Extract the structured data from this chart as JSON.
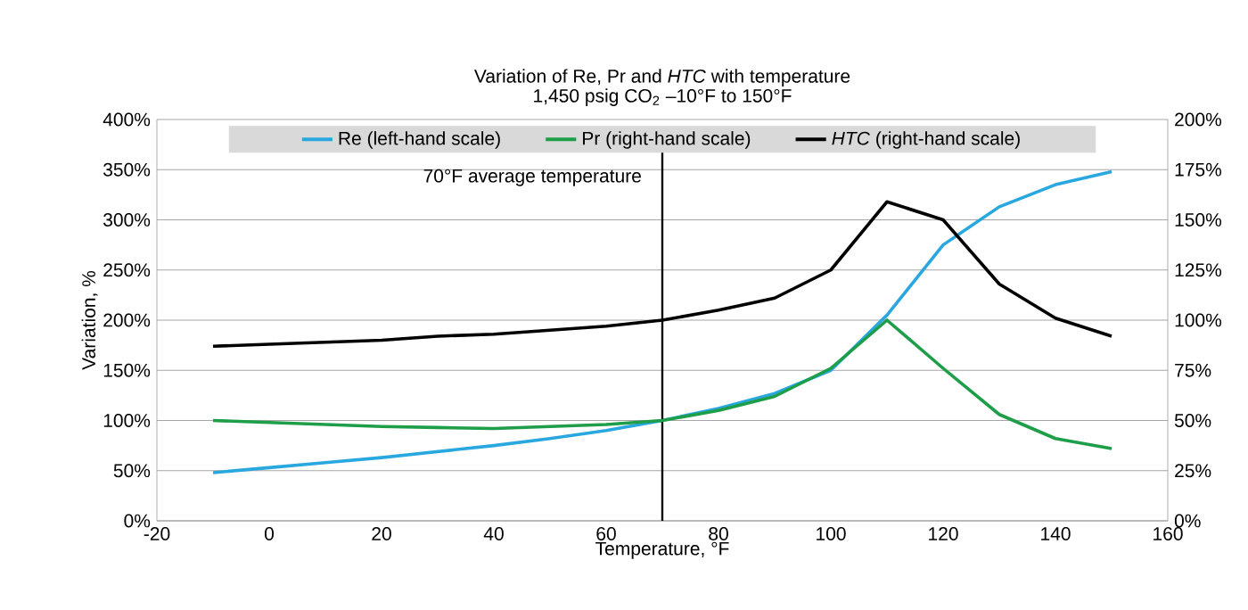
{
  "chart_data": {
    "type": "line",
    "title": "Variation of Re, Pr and *HTC* with temperature",
    "subtitle": "1,450 psig CO$_{2}$  –10°F to 150°F",
    "xlabel": "Temperature, °F",
    "ylabel": "Variation, %",
    "x": [
      -10,
      0,
      10,
      20,
      30,
      40,
      50,
      60,
      70,
      80,
      90,
      100,
      110,
      120,
      130,
      140,
      150
    ],
    "series": [
      {
        "name": "Re (left-hand scale)",
        "color": "#29a8e0",
        "values": [
          48,
          53,
          58,
          63,
          69,
          75,
          82,
          90,
          100,
          112,
          127,
          150,
          205,
          275,
          313,
          335,
          348
        ]
      },
      {
        "name": "Pr (right-hand scale)",
        "color": "#1e9e48",
        "axis": "y2",
        "values": [
          50,
          49,
          48,
          47,
          46.5,
          46,
          47,
          48,
          50,
          55,
          62,
          76,
          100,
          76,
          53,
          41,
          36
        ]
      },
      {
        "name": "*HTC* (right-hand scale)",
        "color": "#000000",
        "axis": "y2",
        "values": [
          87,
          88,
          89,
          90,
          92,
          93,
          95,
          97,
          100,
          105,
          111,
          125,
          159,
          150,
          118,
          101,
          92
        ]
      }
    ],
    "xlim": [
      -20,
      160
    ],
    "xticks": [
      -20,
      0,
      20,
      40,
      60,
      80,
      100,
      120,
      140,
      160
    ],
    "ylim": [
      0,
      400
    ],
    "yticks": [
      {
        "value": 0,
        "label": "0%"
      },
      {
        "value": 50,
        "label": "50%"
      },
      {
        "value": 100,
        "label": "100%"
      },
      {
        "value": 150,
        "label": "150%"
      },
      {
        "value": 200,
        "label": "200%"
      },
      {
        "value": 250,
        "label": "250%"
      },
      {
        "value": 300,
        "label": "300%"
      },
      {
        "value": 350,
        "label": "350%"
      },
      {
        "value": 400,
        "label": "400%"
      }
    ],
    "y2lim": [
      0,
      200
    ],
    "y2ticks": [
      {
        "value": 0,
        "label": "0%"
      },
      {
        "value": 25,
        "label": "25%"
      },
      {
        "value": 50,
        "label": "50%"
      },
      {
        "value": 75,
        "label": "75%"
      },
      {
        "value": 100,
        "label": "100%"
      },
      {
        "value": 125,
        "label": "125%"
      },
      {
        "value": 150,
        "label": "150%"
      },
      {
        "value": 175,
        "label": "175%"
      },
      {
        "value": 200,
        "label": "200%"
      }
    ],
    "ref_lines": [
      {
        "axis": "x",
        "value": 70,
        "label": "70°F average temperature",
        "color": "#000000"
      }
    ],
    "grid": "y",
    "legend": "top",
    "marker": "none",
    "line_style": "solid"
  }
}
